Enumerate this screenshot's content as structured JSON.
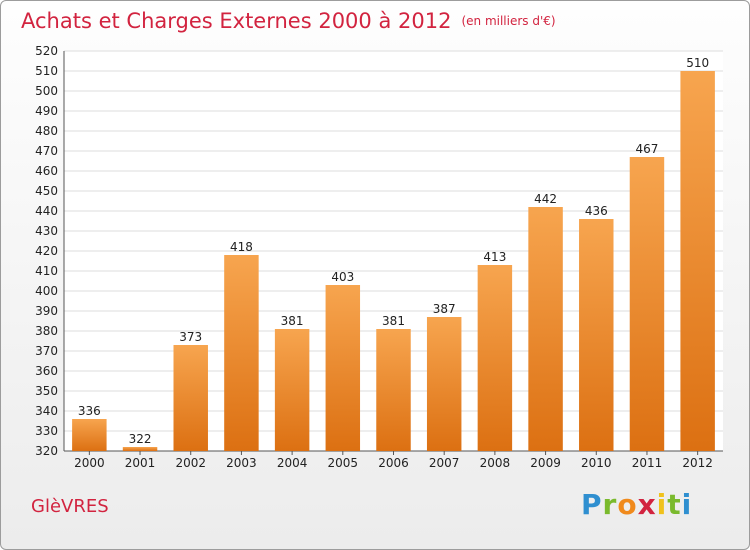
{
  "title": "Achats et Charges Externes 2000 à 2012",
  "subtitle": "(en milliers d'€)",
  "commune": "GlèVRES",
  "logo": {
    "text": "Proxiti",
    "colors": [
      "#2f8fd0",
      "#7aba2d",
      "#f08a1c",
      "#d2233f",
      "#f0c21c",
      "#7aba2d",
      "#2f8fd0"
    ]
  },
  "colors": {
    "bar_top": "#f7a54f",
    "bar_bottom": "#dc7012",
    "grid": "#dedede",
    "title": "#d2233f"
  },
  "chart_data": {
    "type": "bar",
    "title": "Achats et Charges Externes 2000 à 2012",
    "categories": [
      "2000",
      "2001",
      "2002",
      "2003",
      "2004",
      "2005",
      "2006",
      "2007",
      "2008",
      "2009",
      "2010",
      "2011",
      "2012"
    ],
    "values": [
      336,
      322,
      373,
      418,
      381,
      403,
      381,
      387,
      413,
      442,
      436,
      467,
      510
    ],
    "ylim": [
      320,
      520
    ],
    "yticks": [
      320,
      330,
      340,
      350,
      360,
      370,
      380,
      390,
      400,
      410,
      420,
      430,
      440,
      450,
      460,
      470,
      480,
      490,
      500,
      510,
      520
    ],
    "grid": true,
    "data_labels": true
  }
}
